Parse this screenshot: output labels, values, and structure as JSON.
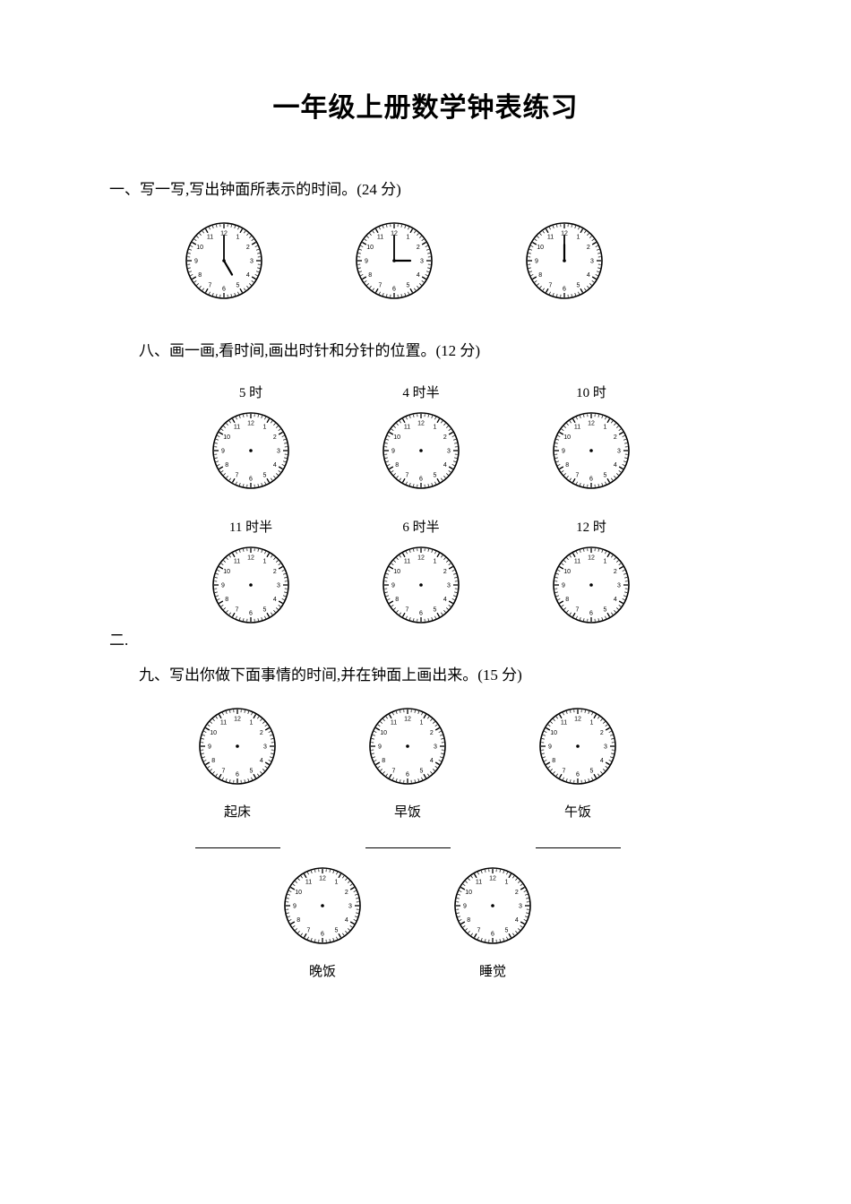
{
  "title": "一年级上册数学钟表练习",
  "section1": {
    "heading": "一、写一写,写出钟面所表示的时间。(24 分)",
    "clocks": [
      {
        "hour": 5,
        "minute": 0,
        "showHands": true
      },
      {
        "hour": 3,
        "minute": 0,
        "showHands": true
      },
      {
        "hour": 12,
        "minute": 0,
        "showHands": true
      }
    ]
  },
  "section8": {
    "heading": "八、画一画,看时间,画出时针和分针的位置。(12 分)",
    "row1": [
      {
        "label": "5 时",
        "showHands": false
      },
      {
        "label": "4 时半",
        "showHands": false
      },
      {
        "label": "10 时",
        "showHands": false
      }
    ],
    "row2": [
      {
        "label": "11 时半",
        "showHands": false
      },
      {
        "label": "6 时半",
        "showHands": false
      },
      {
        "label": "12 时",
        "showHands": false
      }
    ]
  },
  "sideLabel": "二.",
  "section9": {
    "heading": "九、写出你做下面事情的时间,并在钟面上画出来。(15 分)",
    "row1": [
      {
        "label": "起床",
        "showHands": false
      },
      {
        "label": "早饭",
        "showHands": false
      },
      {
        "label": "午饭",
        "showHands": false
      }
    ],
    "row2": [
      {
        "label": "晚饭",
        "showHands": false
      },
      {
        "label": "睡觉",
        "showHands": false
      }
    ]
  },
  "clockStyle": {
    "size": 88,
    "faceColor": "#ffffff",
    "strokeColor": "#000000",
    "numeralFontSize": 7,
    "outerStrokeWidth": 1.6,
    "tickMajorLen": 5,
    "tickMinorLen": 3,
    "handHourLen": 18,
    "handMinuteLen": 28,
    "handWidth": 2.2
  }
}
